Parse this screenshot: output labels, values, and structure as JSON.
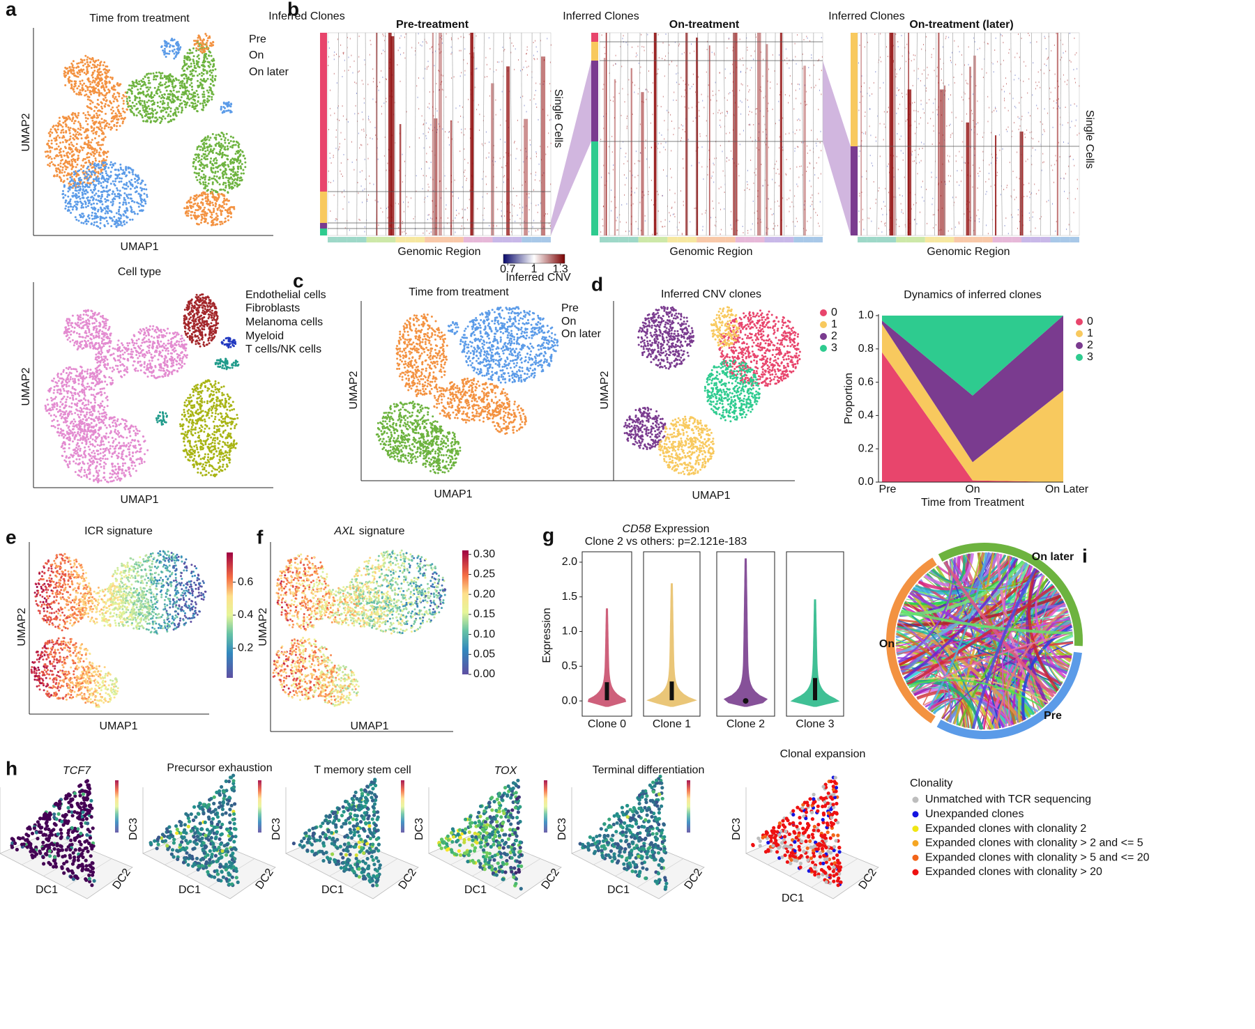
{
  "panel_labels": [
    "a",
    "b",
    "c",
    "d",
    "e",
    "f",
    "g",
    "h",
    "i"
  ],
  "a_time": {
    "title": "Time from treatment",
    "xlabel": "UMAP1",
    "ylabel": "UMAP2",
    "legend": [
      {
        "name": "Pre",
        "color": "#5b9be8"
      },
      {
        "name": "On",
        "color": "#f39241"
      },
      {
        "name": "On later",
        "color": "#6db33f"
      }
    ]
  },
  "a_celltype": {
    "title": "Cell type",
    "xlabel": "UMAP1",
    "ylabel": "UMAP2",
    "legend": [
      {
        "name": "Endothelial cells",
        "color": "#2038c0"
      },
      {
        "name": "Fibroblasts",
        "color": "#1f9a8a"
      },
      {
        "name": "Melanoma cells",
        "color": "#e38bd0"
      },
      {
        "name": "Myeloid",
        "color": "#a3262a"
      },
      {
        "name": "T cells/NK cells",
        "color": "#a8b414"
      }
    ]
  },
  "b": {
    "clones_label": "Inferred Clones",
    "xlabel": "Genomic Region",
    "ylabel": "Single Cells",
    "titles": [
      {
        "text": "Pre-treatment",
        "color": "#5b9be8"
      },
      {
        "text": "On-treatment",
        "color": "#f39241"
      },
      {
        "text": "On-treatment (later)",
        "color": "#6db33f"
      }
    ],
    "colorbar": {
      "label": "Inferred CNV",
      "lim": [
        0.65,
        1.35
      ],
      "ticks": [
        0.7,
        1,
        1.3
      ]
    }
  },
  "c": {
    "title": "Time from treatment",
    "xlabel": "UMAP1",
    "ylabel": "UMAP2",
    "legend": [
      {
        "name": "Pre",
        "color": "#5b9be8"
      },
      {
        "name": "On",
        "color": "#f39241"
      },
      {
        "name": "On later",
        "color": "#6db33f"
      }
    ]
  },
  "d_scatter": {
    "title": "Inferred CNV clones",
    "xlabel": "UMAP1",
    "ylabel": "UMAP2",
    "legend": [
      {
        "name": "0",
        "color": "#e8456c"
      },
      {
        "name": "1",
        "color": "#f8c95e"
      },
      {
        "name": "2",
        "color": "#7a3b8f"
      },
      {
        "name": "3",
        "color": "#2ecb8f"
      }
    ]
  },
  "chart_data": {
    "type": "area",
    "title": "Dynamics of inferred clones",
    "xlabel": "Time from Treatment",
    "ylabel": "Proportion",
    "categories": [
      "Pre",
      "On",
      "On Later"
    ],
    "ylim": [
      0,
      1
    ],
    "yticks": [
      {
        "value": 0,
        "label": "0.0"
      },
      {
        "value": 0.2,
        "label": "0.2"
      },
      {
        "value": 0.4,
        "label": "0.4"
      },
      {
        "value": 0.6,
        "label": "0.6"
      },
      {
        "value": 0.8,
        "label": "0.8"
      },
      {
        "value": 1,
        "label": "1.0"
      }
    ],
    "series": [
      {
        "name": "0",
        "color": "#e8456c",
        "values": [
          0.78,
          0.01,
          0
        ]
      },
      {
        "name": "1",
        "color": "#f8c95e",
        "values": [
          0.17,
          0.11,
          0.55
        ]
      },
      {
        "name": "2",
        "color": "#7a3b8f",
        "values": [
          0.02,
          0.4,
          0.45
        ]
      },
      {
        "name": "3",
        "color": "#2ecb8f",
        "values": [
          0.03,
          0.48,
          0
        ]
      }
    ]
  },
  "e": {
    "title": "ICR signature",
    "xlabel": "UMAP1",
    "ylabel": "UMAP2",
    "colorbar": {
      "lim": [
        0.02,
        0.78
      ],
      "ticks": [
        0.2,
        0.4,
        0.6
      ]
    }
  },
  "f": {
    "title_gene": "AXL",
    "title_rest": "signature",
    "xlabel": "UMAP1",
    "ylabel": "UMAP2",
    "colorbar": {
      "lim": [
        0,
        0.31
      ],
      "ticks": [
        {
          "value": 0,
          "label": "0.00"
        },
        {
          "value": 0.05,
          "label": "0.05"
        },
        {
          "value": 0.1,
          "label": "0.10"
        },
        {
          "value": 0.15,
          "label": "0.15"
        },
        {
          "value": 0.2,
          "label": "0.20"
        },
        {
          "value": 0.25,
          "label": "0.25"
        },
        {
          "value": 0.3,
          "label": "0.30"
        }
      ]
    }
  },
  "g": {
    "title_gene": "CD58",
    "title_rest": "Expression",
    "subtitle": "Clone 2 vs others: p=2.121e-183",
    "ylabel": "Expression",
    "categories": [
      "Clone 0",
      "Clone 1",
      "Clone 2",
      "Clone 3"
    ],
    "colors": [
      "#c94f6d",
      "#e8c06a",
      "#7a3f8f",
      "#2cba8a"
    ],
    "max": [
      1.33,
      1.69,
      2.05,
      1.46
    ],
    "q3": [
      0.27,
      0.28,
      0,
      0.33
    ],
    "ylim": [
      -0.22,
      2.15
    ],
    "yticks": [
      {
        "value": 0,
        "label": "0.0"
      },
      {
        "value": 0.5,
        "label": "0.5"
      },
      {
        "value": 1,
        "label": "1.0"
      },
      {
        "value": 1.5,
        "label": "1.5"
      },
      {
        "value": 2,
        "label": "2.0"
      }
    ]
  },
  "h": {
    "titles": [
      "TCF7",
      "Precursor exhaustion",
      "T memory stem cell",
      "TOX",
      "Terminal differentiation",
      "Clonal expansion"
    ],
    "axes": [
      "DC1",
      "DC2",
      "DC3"
    ],
    "legend_title": "Clonality",
    "legend": [
      {
        "name": "Unmatched with TCR sequencing",
        "color": "#bdbdbd"
      },
      {
        "name": "Unexpanded clones",
        "color": "#1414e0"
      },
      {
        "name": "Expanded clones with clonality 2",
        "color": "#f0e614"
      },
      {
        "name": "Expanded clones with clonality > 2 and <= 5",
        "color": "#f5a623"
      },
      {
        "name": "Expanded clones with clonality > 5 and <= 20",
        "color": "#f26419"
      },
      {
        "name": "Expanded clones with clonality > 20",
        "color": "#ee1111"
      }
    ]
  },
  "i": {
    "labels": [
      {
        "name": "On later",
        "color": "#6db33f"
      },
      {
        "name": "On",
        "color": "#f39241"
      },
      {
        "name": "Pre",
        "color": "#5b9be8"
      }
    ]
  }
}
